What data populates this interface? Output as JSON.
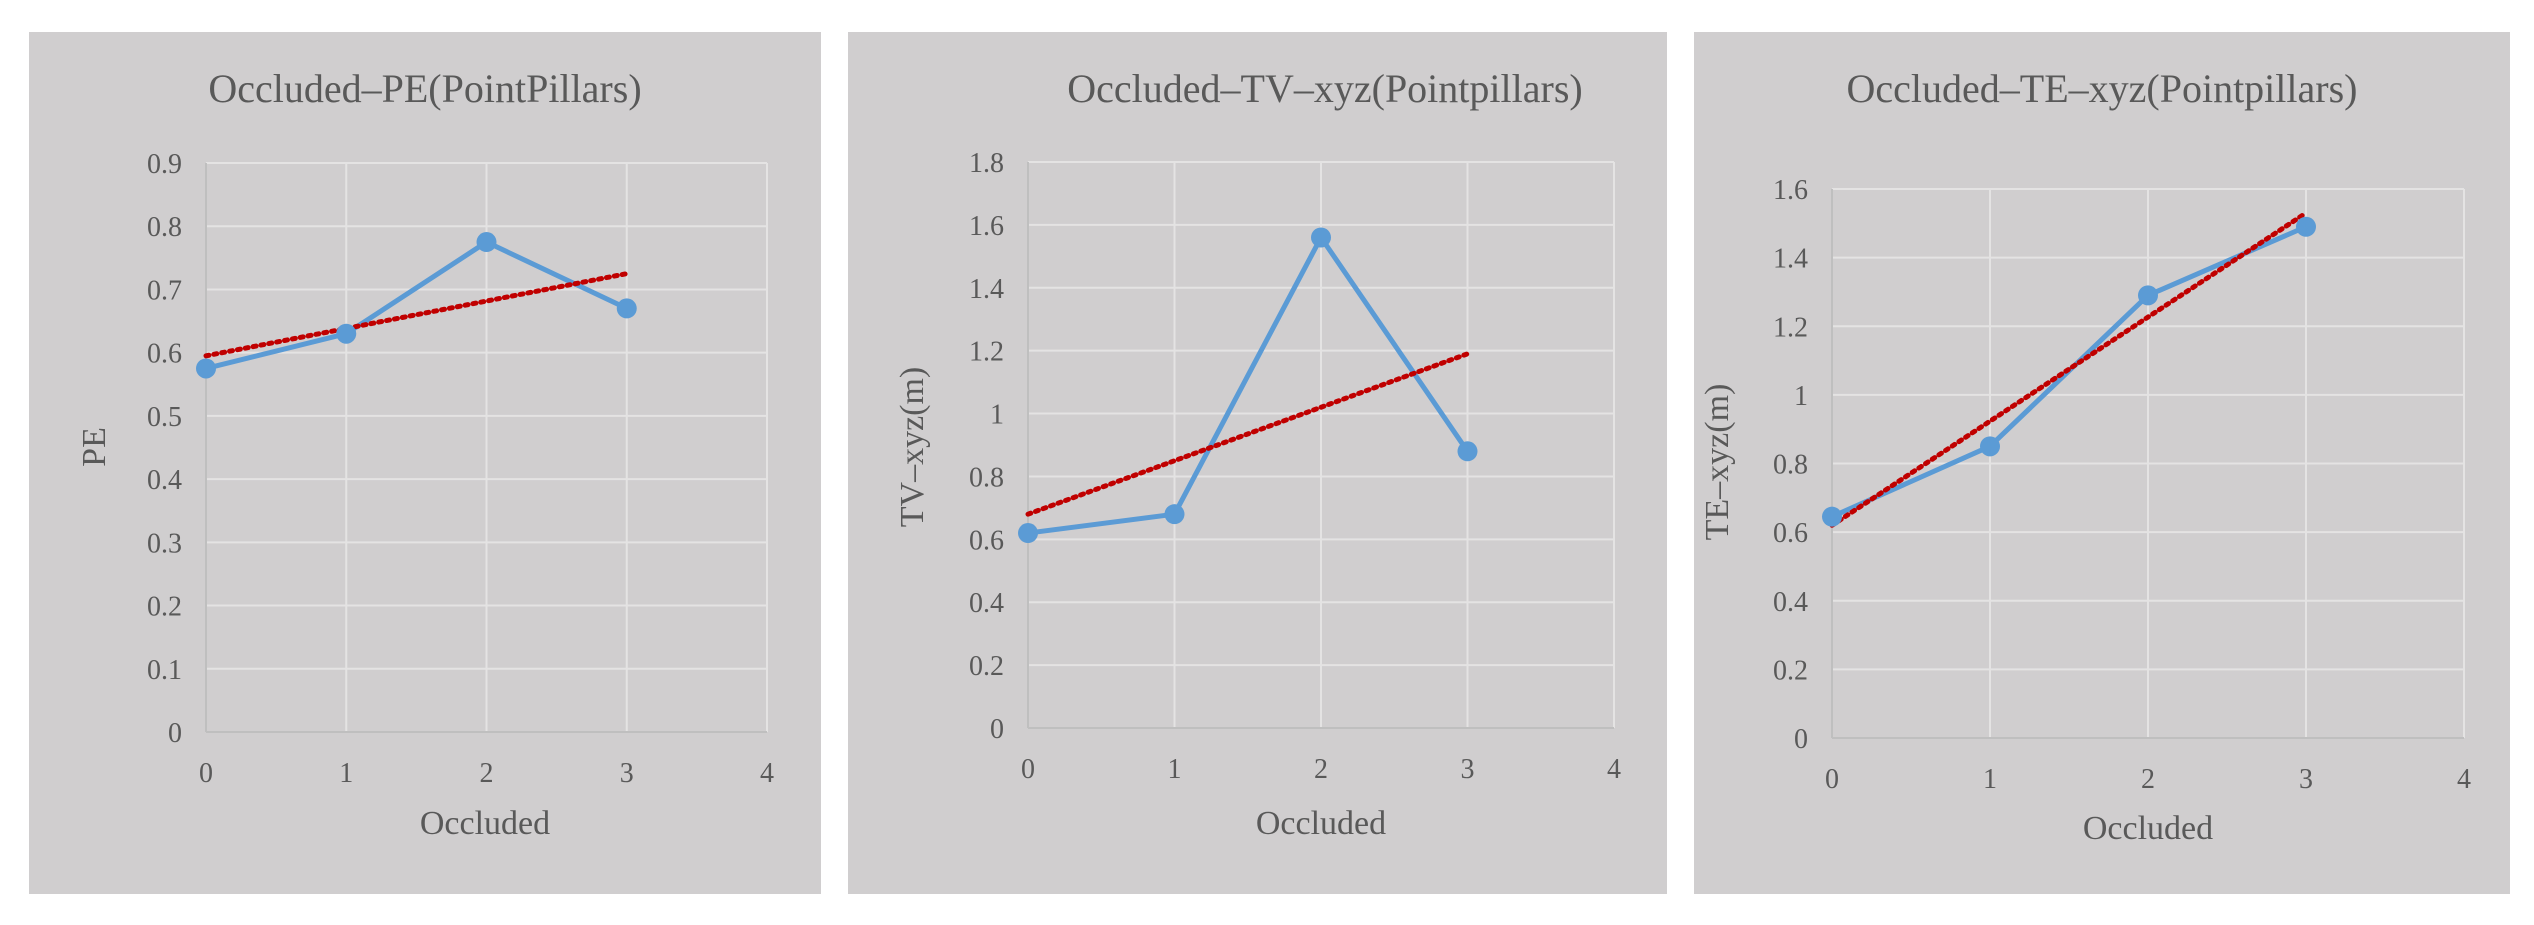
{
  "chart_data": [
    {
      "type": "line",
      "title": "Occluded–PE(PointPillars)",
      "xlabel": "Occluded",
      "ylabel": "PE",
      "xlim": [
        0,
        4
      ],
      "ylim": [
        0,
        0.9
      ],
      "xticks": [
        0,
        1,
        2,
        3,
        4
      ],
      "xtick_labels": [
        "0",
        "1",
        "2",
        "3",
        "4"
      ],
      "yticks": [
        0,
        0.1,
        0.2,
        0.3,
        0.4,
        0.5,
        0.6,
        0.7,
        0.8,
        0.9
      ],
      "ytick_labels": [
        "0",
        "0.1",
        "0.2",
        "0.3",
        "0.4",
        "0.5",
        "0.6",
        "0.7",
        "0.8",
        "0.9"
      ],
      "grid": true,
      "series": [
        {
          "name": "PE",
          "color": "#5b9bd5",
          "x": [
            0,
            1,
            2,
            3
          ],
          "y": [
            0.575,
            0.63,
            0.775,
            0.67
          ]
        }
      ],
      "trendline": {
        "type": "linear",
        "color": "#c00000",
        "x": [
          0,
          3
        ],
        "y": [
          0.595,
          0.725
        ]
      }
    },
    {
      "type": "line",
      "title": "Occluded–TV–xyz(Pointpillars)",
      "xlabel": "Occluded",
      "ylabel": "TV–xyz(m)",
      "xlim": [
        0,
        4
      ],
      "ylim": [
        0,
        1.8
      ],
      "xticks": [
        0,
        1,
        2,
        3,
        4
      ],
      "xtick_labels": [
        "0",
        "1",
        "2",
        "3",
        "4"
      ],
      "yticks": [
        0,
        0.2,
        0.4,
        0.6,
        0.8,
        1,
        1.2,
        1.4,
        1.6,
        1.8
      ],
      "ytick_labels": [
        "0",
        "0.2",
        "0.4",
        "0.6",
        "0.8",
        "1",
        "1.2",
        "1.4",
        "1.6",
        "1.8"
      ],
      "grid": true,
      "series": [
        {
          "name": "TV-xyz",
          "color": "#5b9bd5",
          "x": [
            0,
            1,
            2,
            3
          ],
          "y": [
            0.62,
            0.68,
            1.56,
            0.88
          ]
        }
      ],
      "trendline": {
        "type": "linear",
        "color": "#c00000",
        "x": [
          0,
          3
        ],
        "y": [
          0.68,
          1.19
        ]
      }
    },
    {
      "type": "line",
      "title": "Occluded–TE–xyz(Pointpillars)",
      "xlabel": "Occluded",
      "ylabel": "TE–xyz(m)",
      "xlim": [
        0,
        4
      ],
      "ylim": [
        0,
        1.6
      ],
      "xticks": [
        0,
        1,
        2,
        3,
        4
      ],
      "xtick_labels": [
        "0",
        "1",
        "2",
        "3",
        "4"
      ],
      "yticks": [
        0,
        0.2,
        0.4,
        0.6,
        0.8,
        1,
        1.2,
        1.4,
        1.6
      ],
      "ytick_labels": [
        "0",
        "0.2",
        "0.4",
        "0.6",
        "0.8",
        "1",
        "1.2",
        "1.4",
        "1.6"
      ],
      "grid": true,
      "series": [
        {
          "name": "TE-xyz",
          "color": "#5b9bd5",
          "x": [
            0,
            1,
            2,
            3
          ],
          "y": [
            0.645,
            0.85,
            1.29,
            1.49
          ]
        }
      ],
      "trendline": {
        "type": "linear",
        "color": "#c00000",
        "x": [
          0,
          3
        ],
        "y": [
          0.62,
          1.53
        ]
      }
    }
  ]
}
